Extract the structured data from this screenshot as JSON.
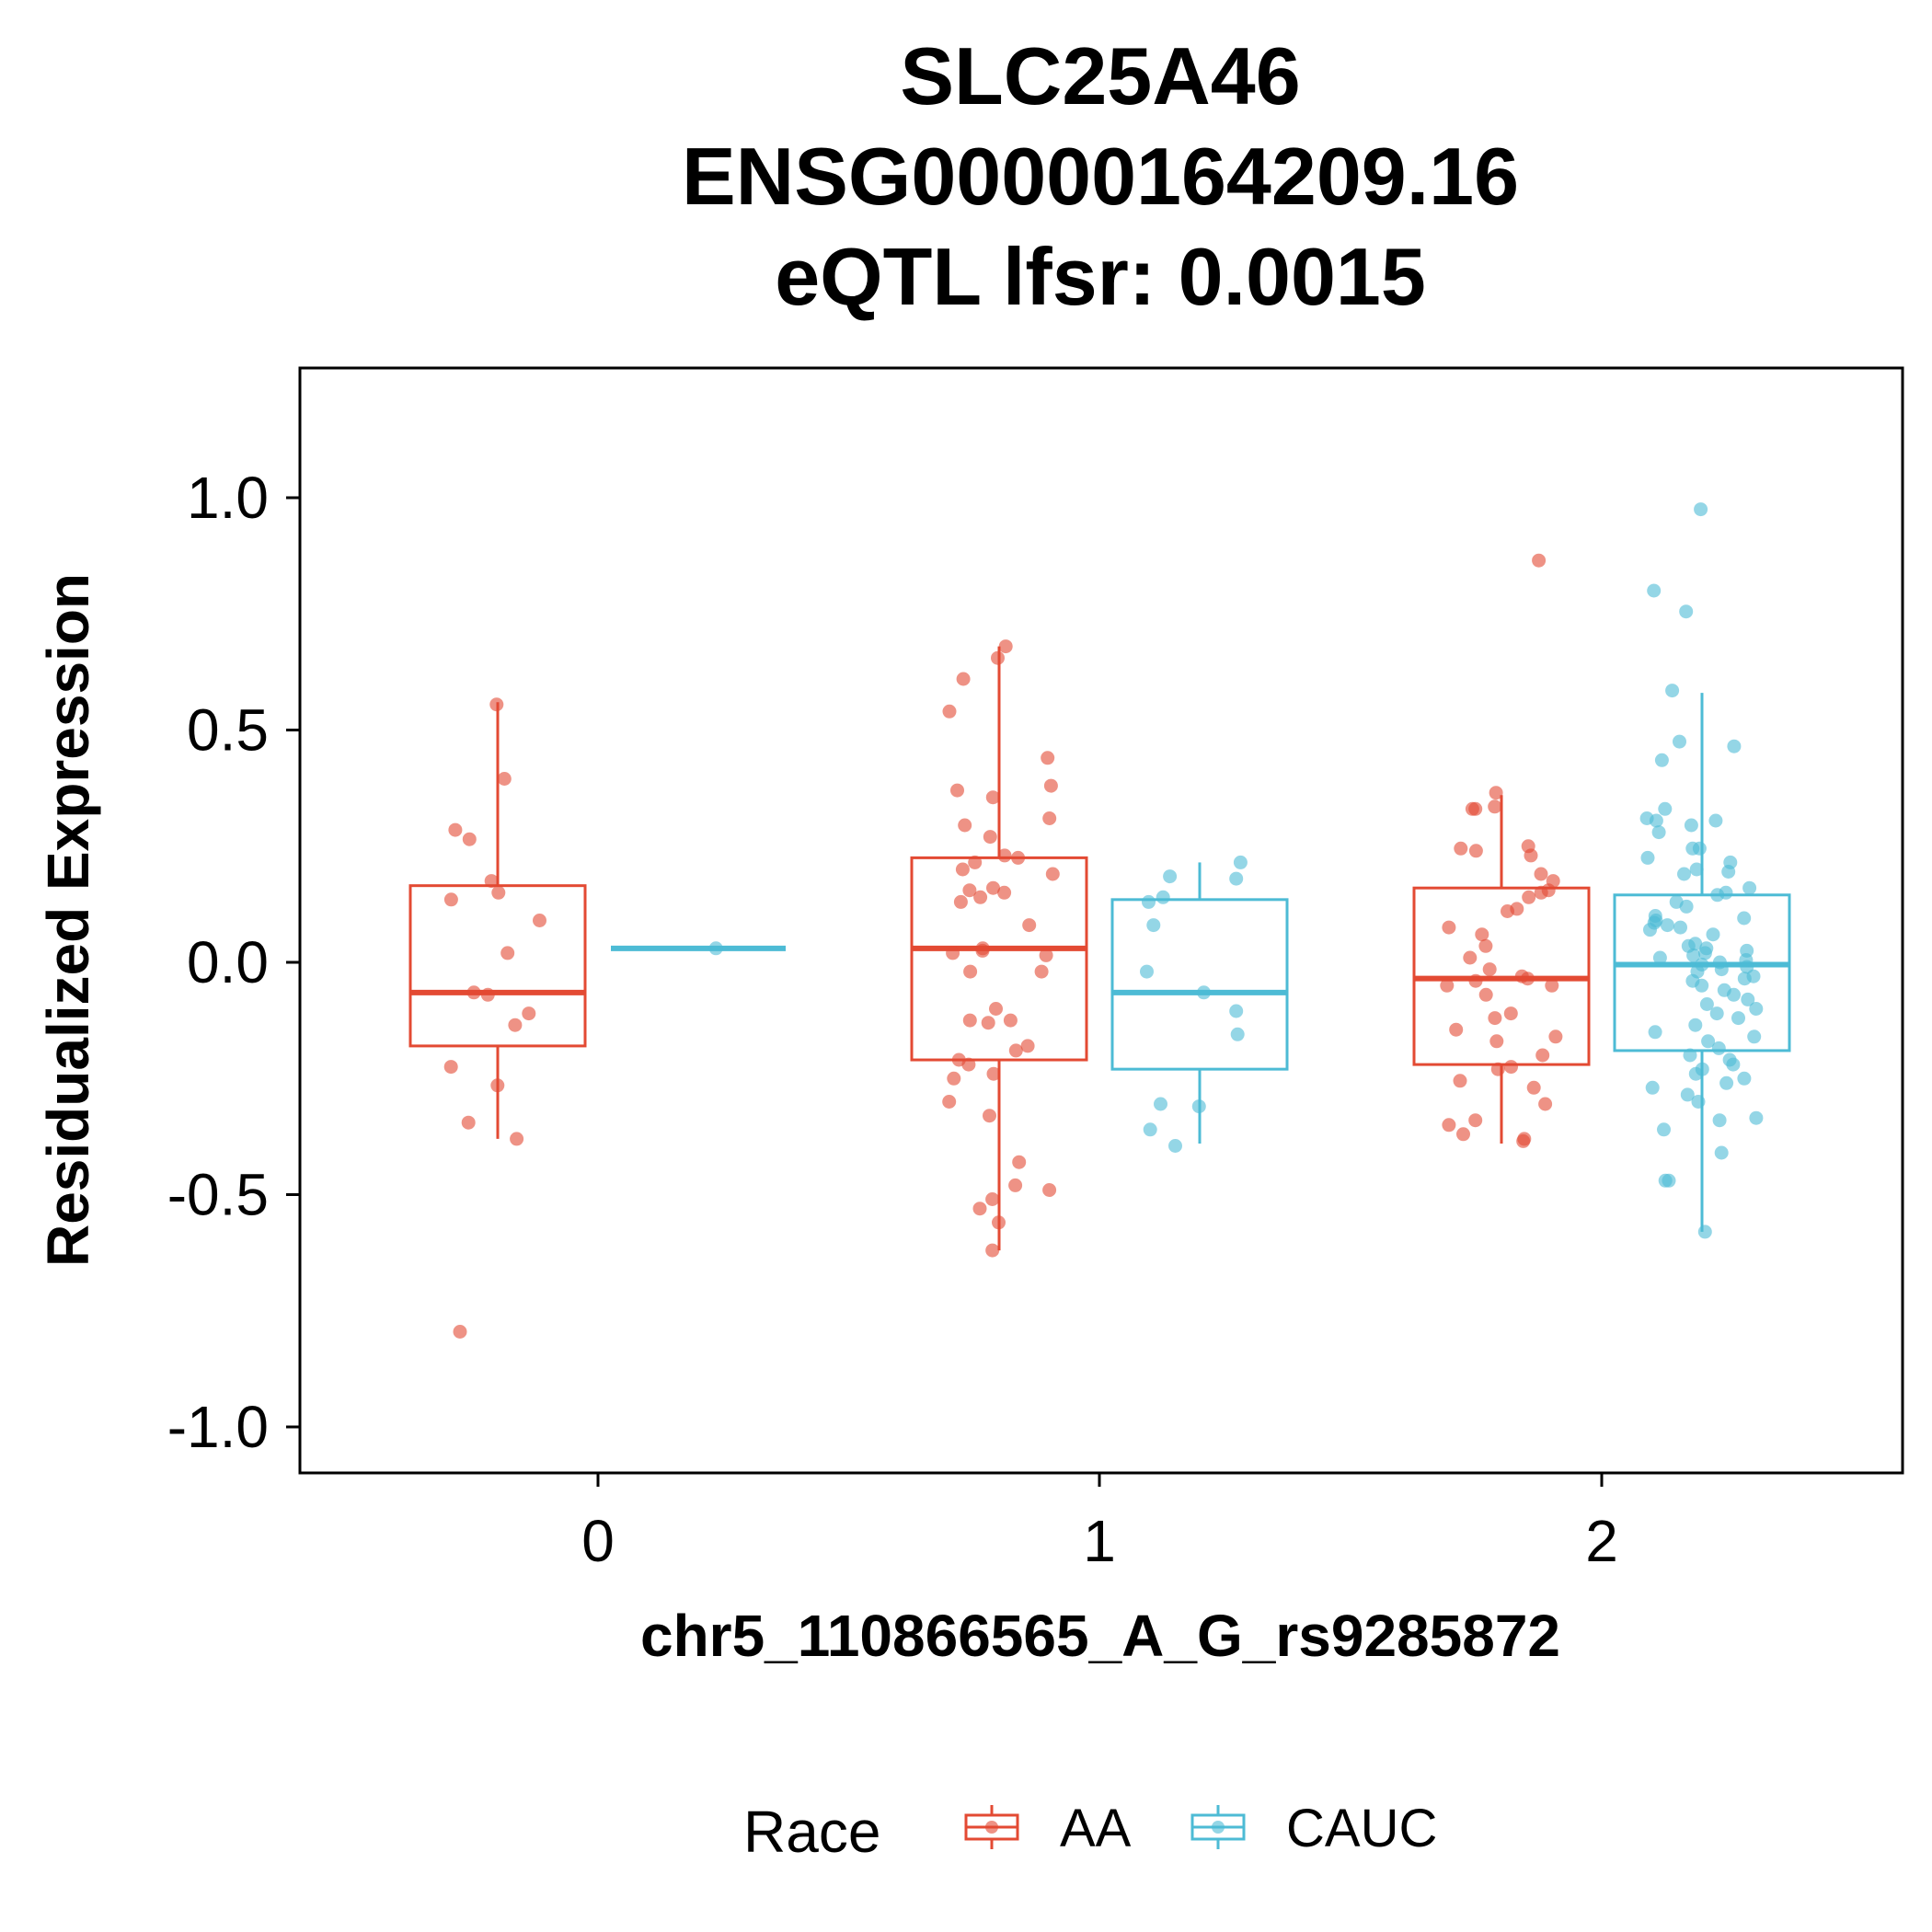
{
  "chart_data": {
    "type": "box",
    "title_lines": [
      "SLC25A46",
      "ENSG00000164209.16",
      "eQTL lfsr: 0.0015"
    ],
    "xlabel": "chr5_110866565_A_G_rs9285872",
    "ylabel": "Residualized Expression",
    "categories": [
      "0",
      "1",
      "2"
    ],
    "y_ticks": [
      1.0,
      0.5,
      0.0,
      -0.5,
      -1.0
    ],
    "y_tick_labels": [
      "1.0",
      "0.5",
      "0.0",
      "-0.5",
      "-1.0"
    ],
    "ylim": [
      -1.1,
      1.28
    ],
    "grid": false,
    "legend": {
      "title": "Race",
      "position": "bottom",
      "entries": [
        {
          "label": "AA",
          "color": "#E34A33"
        },
        {
          "label": "CAUC",
          "color": "#4DBBD5"
        }
      ]
    },
    "series": [
      {
        "name": "AA",
        "color": "#E34A33",
        "boxes": [
          {
            "category": "0",
            "q1": -0.18,
            "median": -0.065,
            "q3": 0.165,
            "whisker_low": -0.38,
            "whisker_high": 0.56
          },
          {
            "category": "1",
            "q1": -0.21,
            "median": 0.03,
            "q3": 0.225,
            "whisker_low": -0.62,
            "whisker_high": 0.68
          },
          {
            "category": "2",
            "q1": -0.22,
            "median": -0.035,
            "q3": 0.16,
            "whisker_low": -0.39,
            "whisker_high": 0.36
          }
        ],
        "points": [
          {
            "category": "0",
            "values": [
              0.555,
              0.395,
              0.285,
              0.265,
              0.175,
              0.15,
              0.135,
              0.09,
              0.02,
              -0.07,
              -0.065,
              -0.11,
              -0.135,
              -0.225,
              -0.265,
              -0.345,
              -0.38,
              -0.795
            ]
          },
          {
            "category": "1",
            "values": [
              0.68,
              0.655,
              0.61,
              0.54,
              0.44,
              0.38,
              0.37,
              0.355,
              0.31,
              0.295,
              0.27,
              0.23,
              0.225,
              0.215,
              0.2,
              0.19,
              0.16,
              0.155,
              0.15,
              0.14,
              0.13,
              0.08,
              0.03,
              0.025,
              0.02,
              0.015,
              -0.02,
              -0.02,
              -0.1,
              -0.125,
              -0.125,
              -0.13,
              -0.18,
              -0.19,
              -0.21,
              -0.22,
              -0.24,
              -0.25,
              -0.3,
              -0.33,
              -0.43,
              -0.48,
              -0.49,
              -0.53,
              -0.51,
              -0.56,
              -0.62
            ]
          },
          {
            "category": "2",
            "values": [
              0.865,
              0.365,
              0.335,
              0.33,
              0.33,
              0.25,
              0.245,
              0.24,
              0.23,
              0.19,
              0.175,
              0.155,
              0.15,
              0.14,
              0.115,
              0.11,
              0.075,
              0.06,
              0.035,
              0.01,
              -0.015,
              -0.03,
              -0.035,
              -0.04,
              -0.05,
              -0.05,
              -0.07,
              -0.11,
              -0.12,
              -0.145,
              -0.16,
              -0.17,
              -0.2,
              -0.225,
              -0.23,
              -0.255,
              -0.27,
              -0.305,
              -0.34,
              -0.35,
              -0.37,
              -0.38,
              -0.385
            ]
          }
        ]
      },
      {
        "name": "CAUC",
        "color": "#4DBBD5",
        "boxes": [
          {
            "category": "0",
            "q1": 0.03,
            "median": 0.03,
            "q3": 0.03,
            "whisker_low": 0.03,
            "whisker_high": 0.03
          },
          {
            "category": "1",
            "q1": -0.23,
            "median": -0.065,
            "q3": 0.135,
            "whisker_low": -0.39,
            "whisker_high": 0.215
          },
          {
            "category": "2",
            "q1": -0.19,
            "median": -0.005,
            "q3": 0.145,
            "whisker_low": -0.58,
            "whisker_high": 0.58
          }
        ],
        "points": [
          {
            "category": "0",
            "values": [
              0.03
            ]
          },
          {
            "category": "1",
            "values": [
              0.215,
              0.185,
              0.18,
              0.14,
              0.13,
              0.08,
              -0.02,
              -0.065,
              -0.105,
              -0.155,
              -0.305,
              -0.31,
              -0.36,
              -0.395
            ]
          },
          {
            "category": "2",
            "values": [
              0.975,
              0.8,
              0.755,
              0.585,
              0.475,
              0.465,
              0.435,
              0.33,
              0.31,
              0.305,
              0.305,
              0.295,
              0.28,
              0.245,
              0.245,
              0.225,
              0.215,
              0.2,
              0.195,
              0.19,
              0.16,
              0.15,
              0.145,
              0.13,
              0.12,
              0.1,
              0.095,
              0.09,
              0.085,
              0.08,
              0.075,
              0.07,
              0.06,
              0.04,
              0.035,
              0.03,
              0.025,
              0.02,
              0.015,
              0.01,
              0.005,
              0.0,
              -0.005,
              -0.01,
              -0.015,
              -0.02,
              -0.03,
              -0.035,
              -0.04,
              -0.05,
              -0.06,
              -0.07,
              -0.08,
              -0.09,
              -0.1,
              -0.11,
              -0.12,
              -0.135,
              -0.15,
              -0.16,
              -0.17,
              -0.185,
              -0.2,
              -0.21,
              -0.22,
              -0.23,
              -0.24,
              -0.25,
              -0.26,
              -0.27,
              -0.285,
              -0.3,
              -0.335,
              -0.34,
              -0.36,
              -0.41,
              -0.47,
              -0.47,
              -0.58
            ]
          }
        ]
      }
    ]
  }
}
